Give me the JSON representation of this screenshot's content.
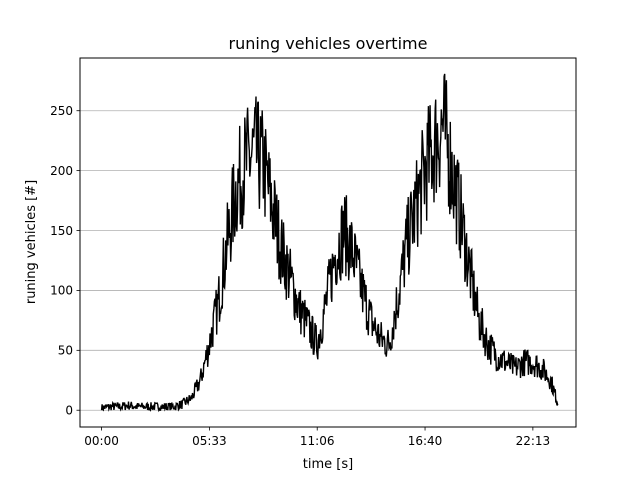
{
  "chart_data": {
    "type": "line",
    "title": "runing vehicles overtime",
    "xlabel": "time [s]",
    "ylabel": "runing vehicles [#]",
    "xlim": [
      -1200,
      26400
    ],
    "ylim": [
      -14,
      294
    ],
    "grid": "horizontal",
    "line_color": "#000000",
    "x_ticks": [
      {
        "value": 0,
        "label": "00:00"
      },
      {
        "value": 6000,
        "label": "05:33"
      },
      {
        "value": 12000,
        "label": "11:06"
      },
      {
        "value": 18000,
        "label": "16:40"
      },
      {
        "value": 24000,
        "label": "22:13"
      }
    ],
    "y_ticks": [
      {
        "value": 0,
        "label": "0"
      },
      {
        "value": 50,
        "label": "50"
      },
      {
        "value": 100,
        "label": "100"
      },
      {
        "value": 150,
        "label": "150"
      },
      {
        "value": 200,
        "label": "200"
      },
      {
        "value": 250,
        "label": "250"
      }
    ],
    "series": [
      {
        "x": [
          0,
          500,
          1000,
          1500,
          2000,
          2500,
          3000,
          3500,
          4000,
          4500,
          5000,
          5500,
          6000,
          6500,
          7000,
          7500,
          8000,
          8500,
          9000,
          9500,
          10000,
          10500,
          11000,
          11500,
          12000,
          12500,
          13000,
          13500,
          14000,
          14500,
          15000,
          15500,
          16000,
          16500,
          17000,
          17500,
          18000,
          18500,
          19000,
          19500,
          20000,
          20500,
          21000,
          21500,
          22000,
          22500,
          23000,
          23500,
          24000,
          24500,
          25000,
          25400
        ],
        "y": [
          2,
          3,
          3,
          4,
          3,
          3,
          3,
          3,
          3,
          5,
          10,
          25,
          55,
          90,
          140,
          185,
          205,
          215,
          205,
          170,
          135,
          110,
          85,
          70,
          55,
          90,
          130,
          150,
          130,
          100,
          75,
          60,
          55,
          95,
          140,
          170,
          200,
          220,
          240,
          200,
          160,
          115,
          75,
          55,
          45,
          40,
          35,
          40,
          40,
          35,
          25,
          5
        ]
      }
    ]
  }
}
